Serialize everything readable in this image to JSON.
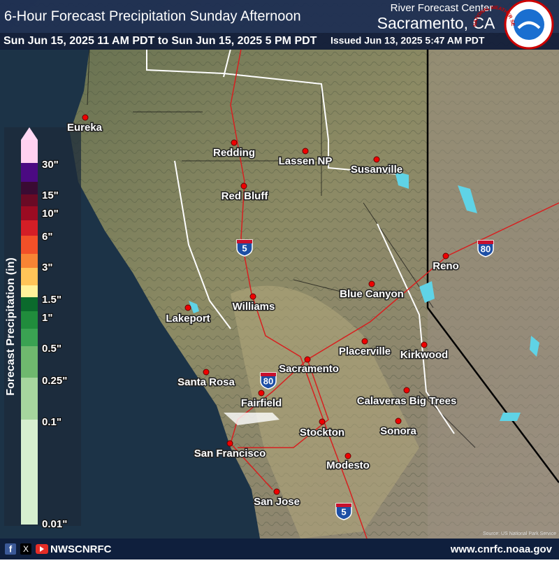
{
  "header": {
    "title": "6-Hour Forecast Precipitation Sunday Afternoon",
    "office_line1": "River Forecast Center",
    "office_line2": "Sacramento, CA",
    "valid": "Sun Jun 15, 2025 11 AM PDT to Sun Jun 15, 2025 5 PM PDT",
    "issued": "Issued Jun 13, 2025 5:47 AM PDT",
    "logo_text": "NATIONAL WEATHER SERVICE"
  },
  "legend": {
    "title": "Forecast Precipitation (in)",
    "labels": [
      "30\"",
      "15\"",
      "10\"",
      "6\"",
      "3\"",
      "1.5\"",
      "1\"",
      "0.5\"",
      "0.25\"",
      "0.1\"",
      "0.01\""
    ]
  },
  "cities": [
    "Eureka",
    "Redding",
    "Lassen NP",
    "Susanville",
    "Red Bluff",
    "Reno",
    "Blue Canyon",
    "Williams",
    "Lakeport",
    "Placerville",
    "Kirkwood",
    "Sacramento",
    "Santa Rosa",
    "Calaveras Big Trees",
    "Fairfield",
    "Stockton",
    "Sonora",
    "San Francisco",
    "Modesto",
    "San Jose"
  ],
  "shields": [
    "5",
    "80",
    "80",
    "5"
  ],
  "source": "Source: US National Park Service",
  "footer": {
    "handle": "NWSCNRFC",
    "url": "www.cnrfc.noaa.gov"
  }
}
